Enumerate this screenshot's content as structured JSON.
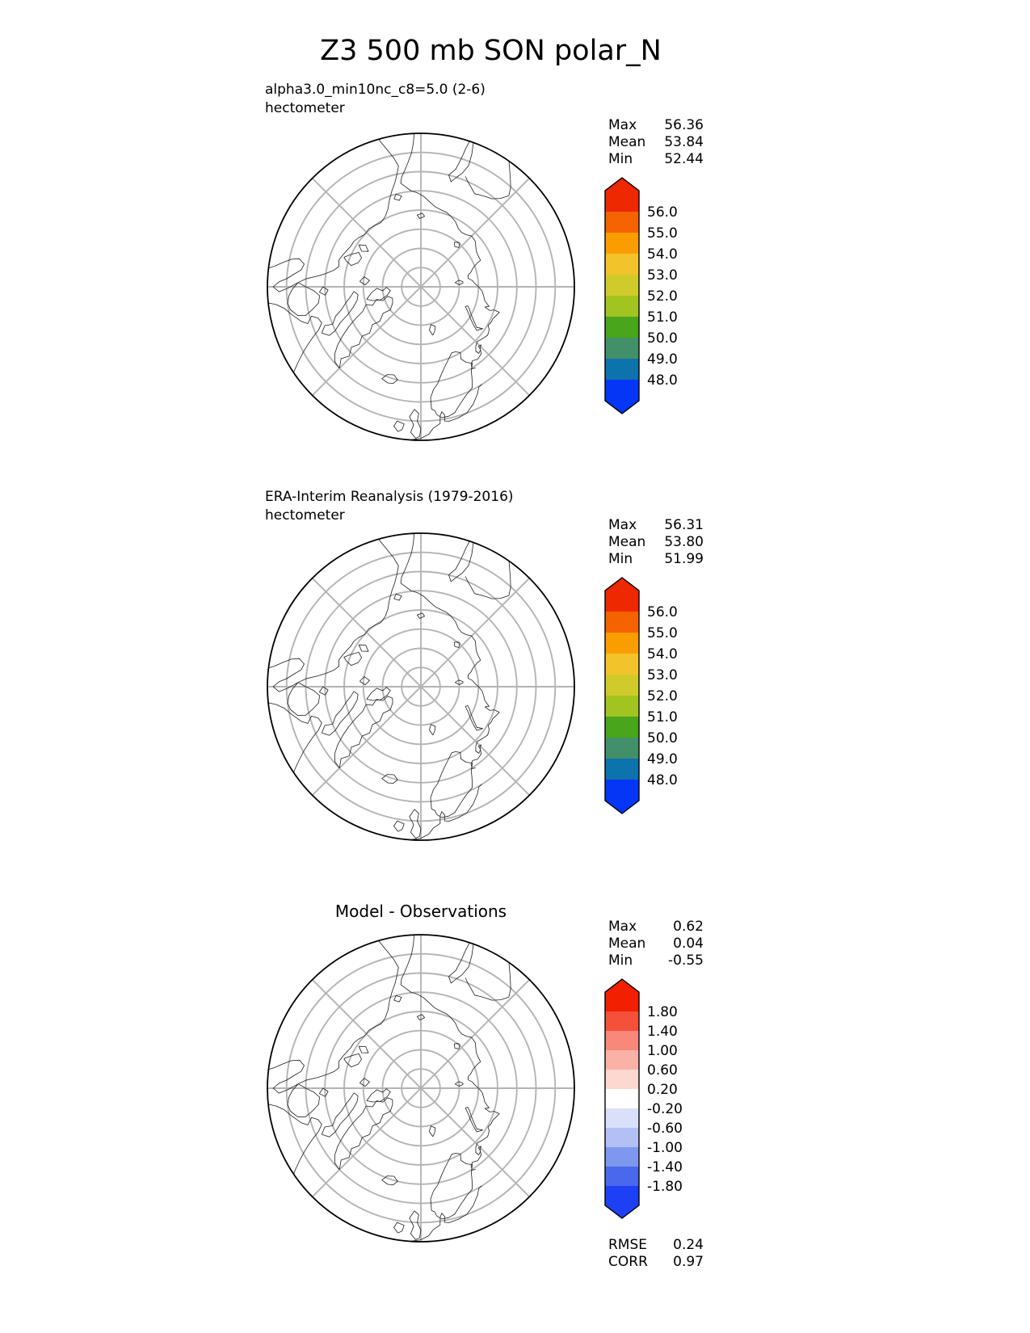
{
  "title": "Z3 500 mb SON polar_N",
  "panels": [
    {
      "id": "model",
      "label_line1": "alpha3.0_min10nc_c8=5.0 (2-6)",
      "label_line2": "hectometer",
      "stats": {
        "max_label": "Max",
        "max_value": "56.36",
        "mean_label": "Mean",
        "mean_value": "53.84",
        "min_label": "Min",
        "min_value": "52.44"
      },
      "colorbar": {
        "tick_labels": [
          "56.0",
          "55.0",
          "54.0",
          "53.0",
          "52.0",
          "51.0",
          "50.0",
          "49.0",
          "48.0"
        ],
        "colors_top_to_bottom": [
          "#EE2800",
          "#F56200",
          "#FA9D00",
          "#F3C32B",
          "#D0CB2B",
          "#A2C420",
          "#48A51C",
          "#41906A",
          "#0C73AC",
          "#0535F5"
        ]
      }
    },
    {
      "id": "reference",
      "label_line1": "ERA-Interim Reanalysis (1979-2016)",
      "label_line2": "hectometer",
      "stats": {
        "max_label": "Max",
        "max_value": "56.31",
        "mean_label": "Mean",
        "mean_value": "53.80",
        "min_label": "Min",
        "min_value": "51.99"
      },
      "colorbar": {
        "tick_labels": [
          "56.0",
          "55.0",
          "54.0",
          "53.0",
          "52.0",
          "51.0",
          "50.0",
          "49.0",
          "48.0"
        ],
        "colors_top_to_bottom": [
          "#EE2800",
          "#F56200",
          "#FA9D00",
          "#F3C32B",
          "#D0CB2B",
          "#A2C420",
          "#48A51C",
          "#41906A",
          "#0C73AC",
          "#0535F5"
        ]
      }
    },
    {
      "id": "difference",
      "title_centered": "Model - Observations",
      "stats": {
        "max_label": "Max",
        "max_value": "0.62",
        "mean_label": "Mean",
        "mean_value": "0.04",
        "min_label": "Min",
        "min_value": "-0.55"
      },
      "colorbar": {
        "tick_labels": [
          "1.80",
          "1.40",
          "1.00",
          "0.60",
          "0.20",
          "-0.20",
          "-0.60",
          "-1.00",
          "-1.40",
          "-1.80"
        ],
        "colors_top_to_bottom": [
          "#F22000",
          "#F5503A",
          "#F8887A",
          "#FAB2A6",
          "#FCD8D0",
          "#FFFFFF",
          "#DAE0FA",
          "#B2C0F5",
          "#7E97EF",
          "#4A68EB",
          "#1E40F5"
        ]
      },
      "extra_stats": {
        "rmse_label": "RMSE",
        "rmse_value": "0.24",
        "corr_label": "CORR",
        "corr_value": "0.97"
      }
    }
  ],
  "chart_data": [
    {
      "type": "heatmap",
      "subtype": "filled-contour polar map",
      "title": "alpha3.0_min10nc_c8=5.0 (2-6)",
      "variable": "Z3",
      "level": "500 mb",
      "season": "SON",
      "region": "polar_N",
      "units": "hectometer",
      "projection": "north polar (concentric latitude circles, radial meridians every 45 deg)",
      "stats": {
        "max": 56.36,
        "mean": 53.84,
        "min": 52.44
      },
      "colorbar_levels": [
        48.0,
        49.0,
        50.0,
        51.0,
        52.0,
        53.0,
        54.0,
        55.0,
        56.0
      ],
      "colorbar_extend": "both",
      "colorbar_colors_low_to_high": [
        "#0535F5",
        "#0C73AC",
        "#41906A",
        "#48A51C",
        "#A2C420",
        "#D0CB2B",
        "#F3C32B",
        "#FA9D00",
        "#F56200",
        "#EE2800"
      ],
      "legend_position": "right"
    },
    {
      "type": "heatmap",
      "subtype": "filled-contour polar map",
      "title": "ERA-Interim Reanalysis (1979-2016)",
      "variable": "Z3",
      "level": "500 mb",
      "season": "SON",
      "region": "polar_N",
      "units": "hectometer",
      "projection": "north polar (concentric latitude circles, radial meridians every 45 deg)",
      "stats": {
        "max": 56.31,
        "mean": 53.8,
        "min": 51.99
      },
      "colorbar_levels": [
        48.0,
        49.0,
        50.0,
        51.0,
        52.0,
        53.0,
        54.0,
        55.0,
        56.0
      ],
      "colorbar_extend": "both",
      "colorbar_colors_low_to_high": [
        "#0535F5",
        "#0C73AC",
        "#41906A",
        "#48A51C",
        "#A2C420",
        "#D0CB2B",
        "#F3C32B",
        "#FA9D00",
        "#F56200",
        "#EE2800"
      ],
      "legend_position": "right"
    },
    {
      "type": "heatmap",
      "subtype": "difference polar map",
      "title": "Model - Observations",
      "variable": "Z3",
      "level": "500 mb",
      "season": "SON",
      "region": "polar_N",
      "projection": "north polar (concentric latitude circles, radial meridians every 45 deg)",
      "stats": {
        "max": 0.62,
        "mean": 0.04,
        "min": -0.55,
        "rmse": 0.24,
        "corr": 0.97
      },
      "colorbar_levels": [
        -1.8,
        -1.4,
        -1.0,
        -0.6,
        -0.2,
        0.2,
        0.6,
        1.0,
        1.4,
        1.8
      ],
      "colorbar_extend": "both",
      "colorbar_colors_low_to_high": [
        "#1E40F5",
        "#4A68EB",
        "#7E97EF",
        "#B2C0F5",
        "#DAE0FA",
        "#FFFFFF",
        "#FCD8D0",
        "#FAB2A6",
        "#F8887A",
        "#F5503A",
        "#F22000"
      ],
      "legend_position": "right"
    }
  ]
}
